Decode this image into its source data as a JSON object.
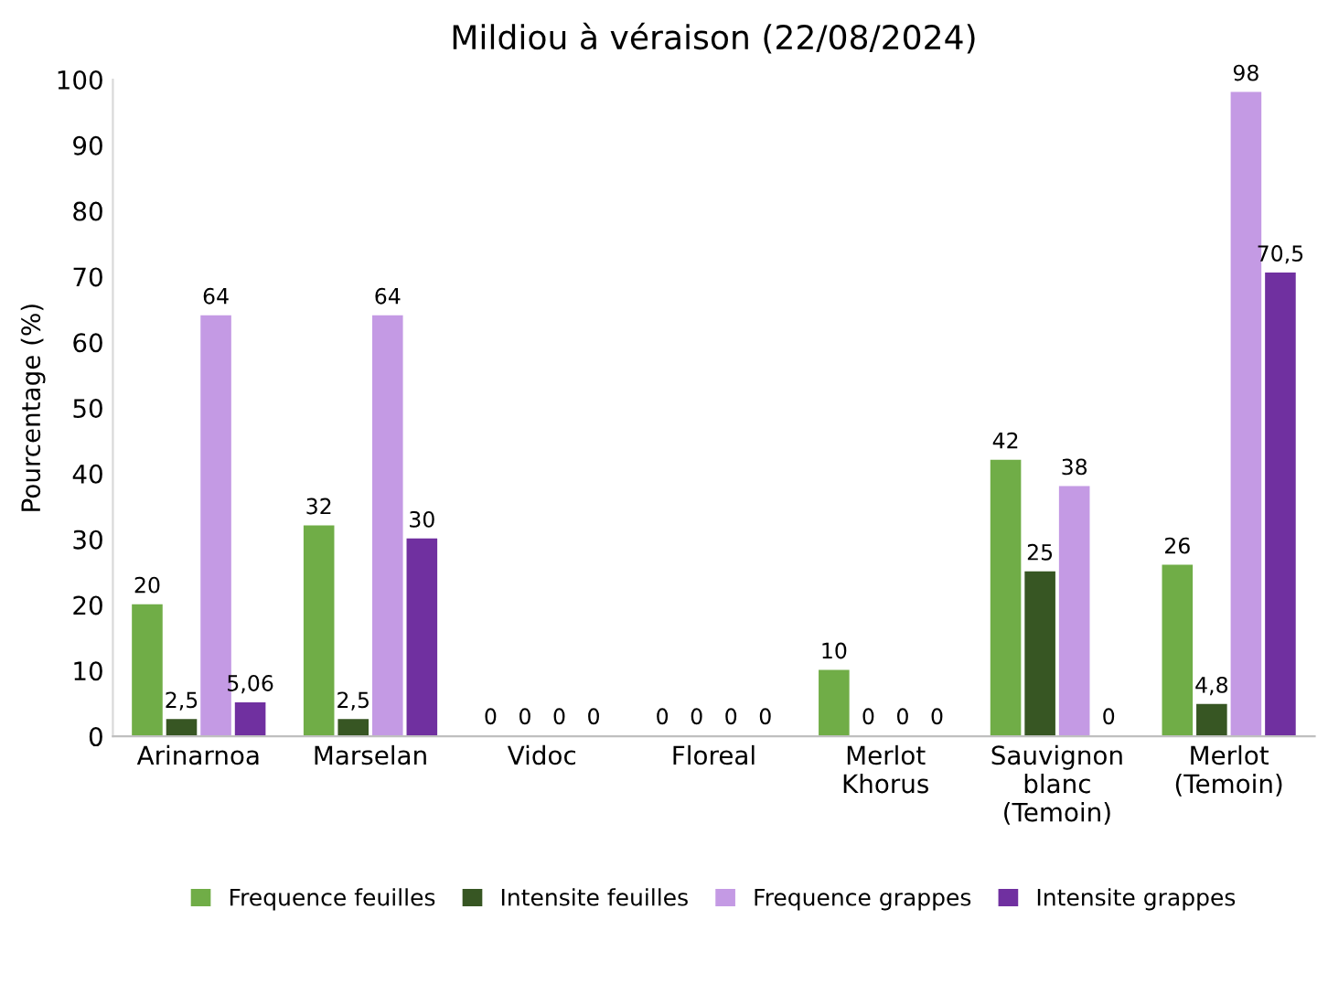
{
  "chart_data": {
    "type": "bar",
    "title": "Mildiou à véraison (22/08/2024)",
    "ylabel": "Pourcentage (%)",
    "categories": [
      "Arinarnoa",
      "Marselan",
      "Vidoc",
      "Floreal",
      "Merlot\nKhorus",
      "Sauvignon\nblanc\n(Temoin)",
      "Merlot\n(Temoin)"
    ],
    "series": [
      {
        "name": "Frequence feuilles",
        "color": "#70ad47",
        "values": [
          20,
          32,
          0,
          0,
          10,
          42,
          26
        ],
        "value_labels": [
          "20",
          "32",
          "0",
          "0",
          "10",
          "42",
          "26"
        ]
      },
      {
        "name": "Intensite feuilles",
        "color": "#375623",
        "values": [
          2.5,
          2.5,
          0,
          0,
          0,
          25,
          4.8
        ],
        "value_labels": [
          "2,5",
          "2,5",
          "0",
          "0",
          "0",
          "25",
          "4,8"
        ]
      },
      {
        "name": "Frequence grappes",
        "color": "#c49ae4",
        "values": [
          64,
          64,
          0,
          0,
          0,
          38,
          98
        ],
        "value_labels": [
          "64",
          "64",
          "0",
          "0",
          "0",
          "38",
          "98"
        ]
      },
      {
        "name": "Intensite grappes",
        "color": "#7030a0",
        "values": [
          5.06,
          30,
          0,
          0,
          0,
          0,
          70.5
        ],
        "value_labels": [
          "5,06",
          "30",
          "0",
          "0",
          "0",
          "0",
          "70,5"
        ]
      }
    ],
    "ylim": [
      0,
      100
    ],
    "yticks": [
      0,
      10,
      20,
      30,
      40,
      50,
      60,
      70,
      80,
      90,
      100
    ],
    "grid": false,
    "legend": "bottom"
  }
}
